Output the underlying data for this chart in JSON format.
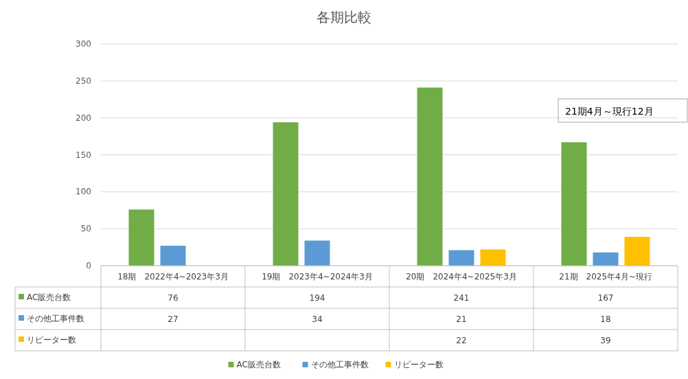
{
  "chart_data": {
    "type": "bar",
    "title": "各期比較",
    "categories": [
      "18期　2022年4~2023年3月",
      "19期　2023年4~2024年3月",
      "20期　2024年4~2025年3月",
      "21期　2025年4月~現行"
    ],
    "series": [
      {
        "name": "AC販売台数",
        "color": "#70ad47",
        "values": [
          76,
          194,
          241,
          167
        ]
      },
      {
        "name": "その他工事件数",
        "color": "#5b9bd5",
        "values": [
          27,
          34,
          21,
          18
        ]
      },
      {
        "name": "リピーター数",
        "color": "#ffc000",
        "values": [
          null,
          null,
          22,
          39
        ]
      }
    ],
    "ylim": [
      0,
      300
    ],
    "yticks": [
      0,
      50,
      100,
      150,
      200,
      250,
      300
    ],
    "grid": "y",
    "legend": "bottom",
    "data_labels": true,
    "annotations": [
      "21期4月～現行12月"
    ]
  }
}
